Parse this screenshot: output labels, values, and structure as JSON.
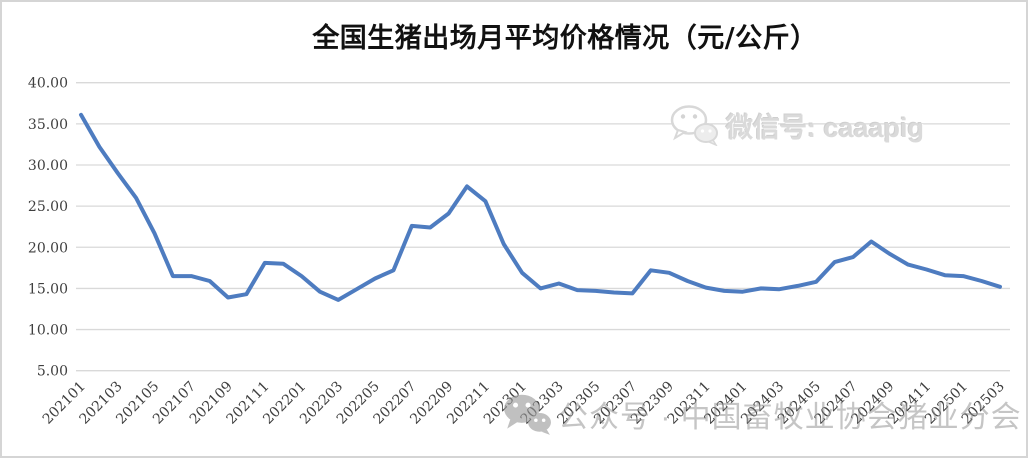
{
  "title": "全国生猪出场月平均价格情况（元/公斤）",
  "watermarks": {
    "wechat_id_label": "微信号: caaapig",
    "bottom_label": "公众号 · 中国畜牧业协会猪业分会"
  },
  "chart_data": {
    "type": "line",
    "title": "全国生猪出场月平均价格情况（元/公斤）",
    "xlabel": "",
    "ylabel": "",
    "legend": "none",
    "grid": true,
    "ylim": [
      5,
      40
    ],
    "y_ticks": [
      40,
      35,
      30,
      25,
      20,
      15,
      10,
      5
    ],
    "y_tick_labels": [
      "40.00",
      "35.00",
      "30.00",
      "25.00",
      "20.00",
      "15.00",
      "10.00",
      "5.00"
    ],
    "x_tick_labels": [
      "202101",
      "202103",
      "202105",
      "202107",
      "202109",
      "202111",
      "202201",
      "202203",
      "202205",
      "202207",
      "202209",
      "202211",
      "202301",
      "202303",
      "202305",
      "202307",
      "202309",
      "202311",
      "202401",
      "202403",
      "202405",
      "202407",
      "202409",
      "202411",
      "202501",
      "202503"
    ],
    "x": [
      "202101",
      "202102",
      "202103",
      "202104",
      "202105",
      "202106",
      "202107",
      "202108",
      "202109",
      "202110",
      "202111",
      "202112",
      "202201",
      "202202",
      "202203",
      "202204",
      "202205",
      "202206",
      "202207",
      "202208",
      "202209",
      "202210",
      "202211",
      "202212",
      "202301",
      "202302",
      "202303",
      "202304",
      "202305",
      "202306",
      "202307",
      "202308",
      "202309",
      "202310",
      "202311",
      "202312",
      "202401",
      "202402",
      "202403",
      "202404",
      "202405",
      "202406",
      "202407",
      "202408",
      "202409",
      "202410",
      "202411",
      "202412",
      "202501",
      "202502",
      "202503"
    ],
    "values": [
      36.1,
      32.2,
      29.0,
      26.0,
      21.7,
      16.5,
      16.5,
      15.9,
      13.9,
      14.3,
      18.1,
      18.0,
      16.5,
      14.6,
      13.6,
      14.9,
      16.2,
      17.2,
      22.6,
      22.4,
      24.1,
      27.4,
      25.6,
      20.4,
      16.9,
      15.0,
      15.6,
      14.8,
      14.7,
      14.5,
      14.4,
      17.2,
      16.9,
      15.9,
      15.1,
      14.7,
      14.6,
      15.0,
      14.9,
      15.3,
      15.8,
      18.2,
      18.8,
      20.7,
      19.2,
      17.9,
      17.3,
      16.6,
      16.5,
      15.9,
      15.2
    ],
    "colors": {
      "line": "#4e7cc0",
      "gridline": "#d9d9d9",
      "tick_label": "#3f3f3f",
      "title": "#111111",
      "watermark": "#c8c8c8"
    }
  }
}
